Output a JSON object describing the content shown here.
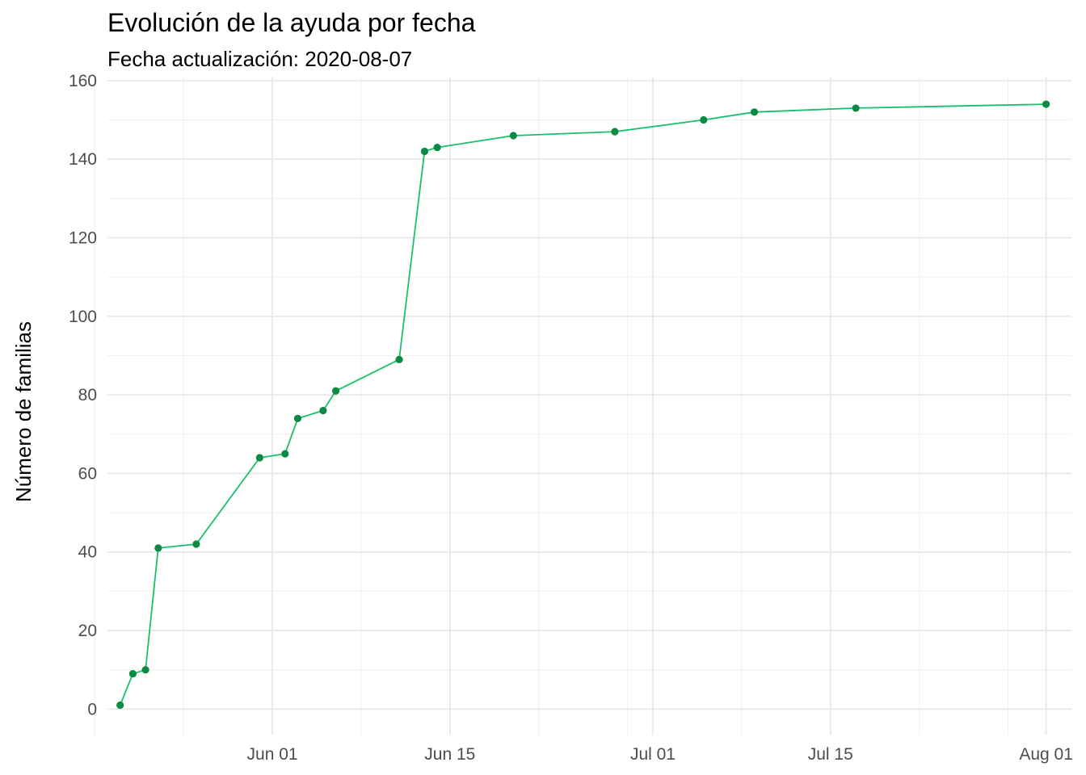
{
  "chart_data": {
    "type": "line",
    "title": "Evolución de la ayuda por fecha",
    "subtitle": "Fecha actualización: 2020-08-07",
    "xlabel": "",
    "ylabel": "Número de familias",
    "xlim": [
      "2020-05-19",
      "2020-08-03"
    ],
    "ylim": [
      -6.5,
      161
    ],
    "grid": true,
    "legend": "none",
    "x_major_ticks": [
      {
        "date": "2020-06-01",
        "label": "Jun 01"
      },
      {
        "date": "2020-06-15",
        "label": "Jun 15"
      },
      {
        "date": "2020-07-01",
        "label": "Jul 01"
      },
      {
        "date": "2020-07-15",
        "label": "Jul 15"
      },
      {
        "date": "2020-08-01",
        "label": "Aug 01"
      }
    ],
    "x_minor_ticks": [
      "2020-05-18",
      "2020-05-25",
      "2020-06-08",
      "2020-06-22",
      "2020-06-29",
      "2020-07-08",
      "2020-07-22",
      "2020-07-29"
    ],
    "y_ticks": [
      0,
      20,
      40,
      60,
      80,
      100,
      120,
      140,
      160
    ],
    "series": [
      {
        "line_color": "#1abf6b",
        "point_color": "#0b8a43",
        "x": [
          "2020-05-20",
          "2020-05-21",
          "2020-05-22",
          "2020-05-23",
          "2020-05-26",
          "2020-05-31",
          "2020-06-02",
          "2020-06-03",
          "2020-06-05",
          "2020-06-06",
          "2020-06-11",
          "2020-06-13",
          "2020-06-14",
          "2020-06-20",
          "2020-06-28",
          "2020-07-05",
          "2020-07-09",
          "2020-07-17",
          "2020-08-01"
        ],
        "values": [
          1,
          9,
          10,
          41,
          42,
          64,
          65,
          74,
          76,
          81,
          89,
          142,
          143,
          146,
          147,
          150,
          152,
          153,
          154
        ]
      }
    ]
  }
}
